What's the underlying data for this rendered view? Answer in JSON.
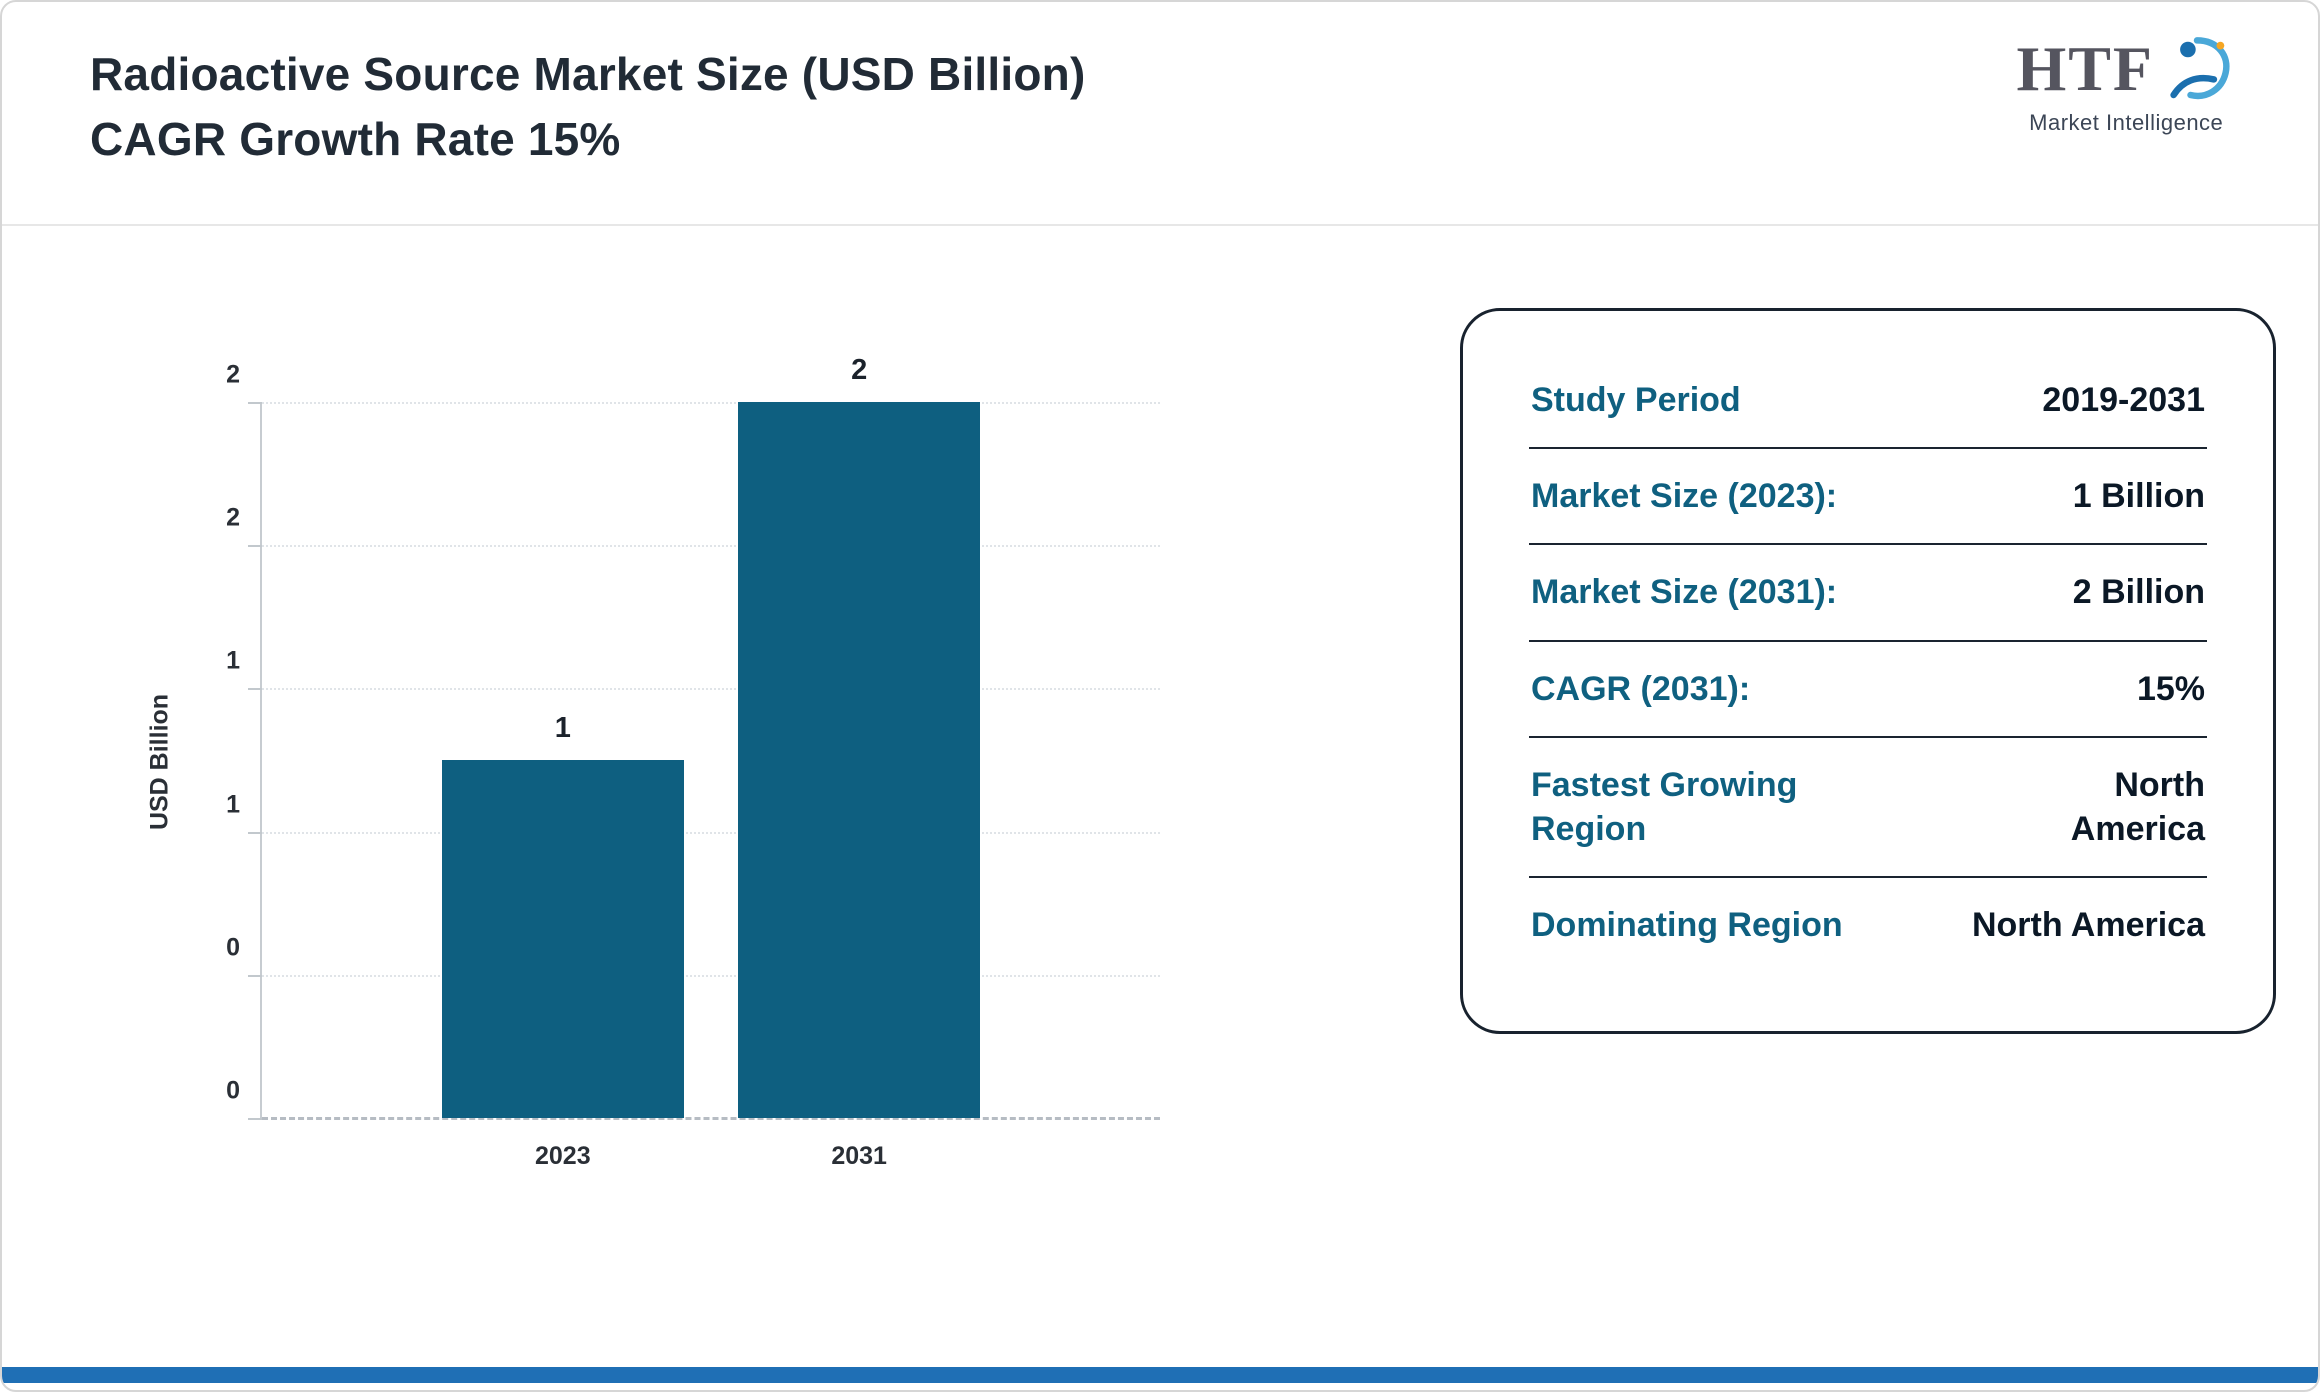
{
  "header": {
    "title_line1": "Radioactive Source Market Size (USD Billion)",
    "title_line2": "CAGR Growth Rate 15%"
  },
  "logo": {
    "text": "HTF",
    "subtext": "Market Intelligence"
  },
  "chart_data": {
    "type": "bar",
    "categories": [
      "2023",
      "2031"
    ],
    "values": [
      1,
      2
    ],
    "value_labels": [
      "1",
      "2"
    ],
    "title": "Radioactive Source Market Size (USD Billion) CAGR Growth Rate 15%",
    "xlabel": "",
    "ylabel": "USD Billion",
    "ylim": [
      0,
      2
    ],
    "ytick_labels_bottom_to_top": [
      "0",
      "0",
      "1",
      "1",
      "2",
      "2"
    ],
    "grid": "horizontal dotted",
    "legend": "none",
    "bar_color": "#0e5f80"
  },
  "summary_card": {
    "rows": [
      {
        "label": "Study Period",
        "value": "2019-2031"
      },
      {
        "label": "Market Size (2023):",
        "value": "1 Billion"
      },
      {
        "label": "Market Size (2031):",
        "value": "2 Billion"
      },
      {
        "label": "CAGR (2031):",
        "value": "15%"
      },
      {
        "label": "Fastest Growing\nRegion",
        "value": "North\nAmerica"
      },
      {
        "label": "Dominating Region",
        "value": "North America"
      }
    ]
  },
  "colors": {
    "bar": "#0e5f80",
    "card_label_teal": "#0f6080",
    "card_value_navy": "#0b1826",
    "bottom_accent": "#1f6fb5"
  }
}
